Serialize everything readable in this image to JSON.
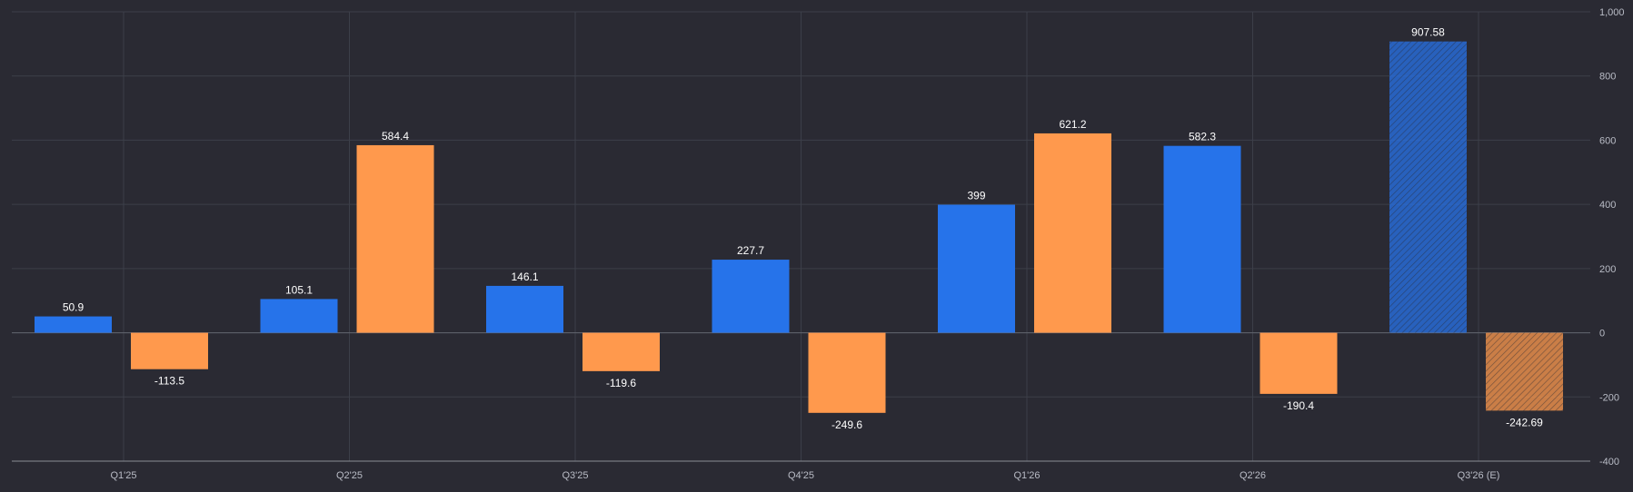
{
  "chart_data": {
    "type": "bar",
    "categories": [
      "Q1'25",
      "Q2'25",
      "Q3'25",
      "Q4'25",
      "Q1'26",
      "Q2'26",
      "Q3'26 (E)"
    ],
    "series": [
      {
        "values": [
          50.9,
          105.1,
          146.1,
          227.7,
          399,
          582.3,
          907.58
        ],
        "color": "#2673ea"
      },
      {
        "values": [
          -113.5,
          584.4,
          -119.6,
          -249.6,
          621.2,
          -190.4,
          -242.69
        ],
        "color": "#ff994d"
      }
    ],
    "data_labels": [
      [
        "50.9",
        "105.1",
        "146.1",
        "227.7",
        "399",
        "582.3",
        "907.58"
      ],
      [
        "-113.5",
        "584.4",
        "-119.6",
        "-249.6",
        "621.2",
        "-190.4",
        "-242.69"
      ]
    ],
    "estimated_category": "Q3'26 (E)",
    "estimated_style": "hatched",
    "yticks": [
      -400,
      -200,
      0,
      200,
      400,
      600,
      800,
      1000
    ],
    "ytick_labels": [
      "-400",
      "-200",
      "0",
      "200",
      "400",
      "600",
      "800",
      "1,000"
    ],
    "ylim": [
      -400,
      1000
    ],
    "y_axis_side": "right",
    "grid": true,
    "legend": "none",
    "colors": {
      "background": "#2a2a33",
      "grid": "#3c3f49",
      "axis": "#8a8d96",
      "text": "#b9bcc6",
      "label": "#ffffff"
    }
  }
}
